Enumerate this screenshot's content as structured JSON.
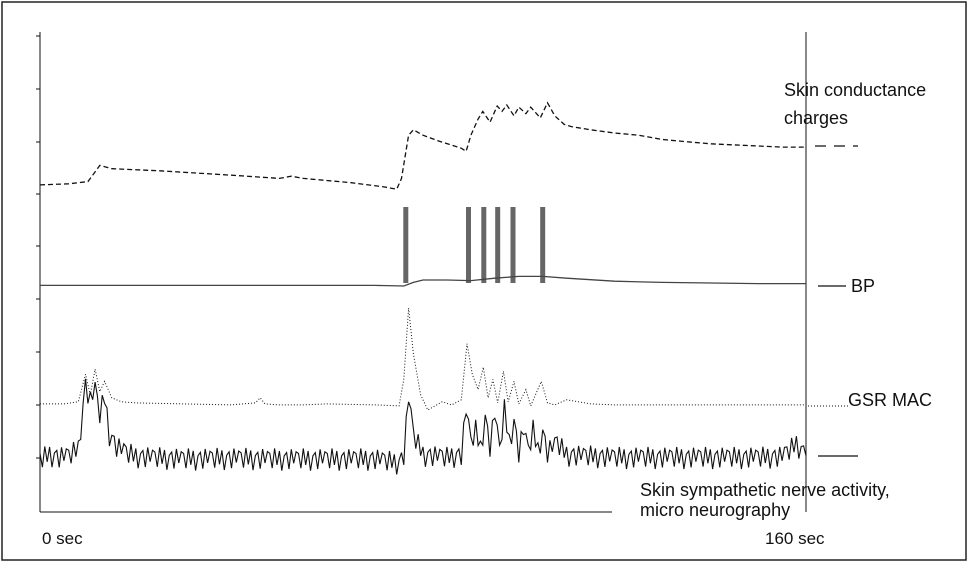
{
  "chart_data": {
    "type": "line",
    "xlabel": "",
    "ylabel": "",
    "xlim": [
      0,
      160
    ],
    "grid": false,
    "x_tick_labels": [
      {
        "x": 0,
        "label": "0 sec"
      },
      {
        "x": 160,
        "label": "160 sec"
      }
    ],
    "bp_pulses_x": [
      76.3,
      89.4,
      92.6,
      95.5,
      98.7,
      104.9
    ],
    "series": [
      {
        "name": "Skin conductance charges",
        "style": "dashed",
        "x": [
          0,
          6,
          10,
          11.5,
          12.5,
          15,
          25,
          40,
          50,
          52.5,
          55,
          65,
          72,
          74.5,
          75.5,
          77,
          78,
          80,
          83,
          88,
          89,
          90,
          91.5,
          92.5,
          94,
          95.5,
          96.5,
          97.5,
          99,
          100,
          101.5,
          102.5,
          104.5,
          106,
          107.5,
          109.5,
          111,
          115,
          120,
          125,
          130,
          135,
          140,
          145,
          150,
          155,
          158,
          160
        ],
        "y": [
          0.14,
          0.15,
          0.17,
          0.26,
          0.32,
          0.29,
          0.27,
          0.23,
          0.2,
          0.22,
          0.2,
          0.16,
          0.12,
          0.1,
          0.2,
          0.6,
          0.65,
          0.6,
          0.55,
          0.48,
          0.45,
          0.6,
          0.75,
          0.82,
          0.72,
          0.87,
          0.82,
          0.88,
          0.78,
          0.86,
          0.8,
          0.86,
          0.76,
          0.9,
          0.78,
          0.7,
          0.68,
          0.65,
          0.62,
          0.6,
          0.56,
          0.54,
          0.52,
          0.51,
          0.5,
          0.49,
          0.49,
          0.49
        ]
      },
      {
        "name": "BP",
        "style": "solid",
        "x": [
          0,
          10,
          20,
          30,
          40,
          50,
          60,
          70,
          76,
          78,
          80,
          85,
          90,
          95,
          100,
          105,
          110,
          120,
          130,
          140,
          150,
          160
        ],
        "y": [
          0.01,
          0.01,
          0.01,
          0.01,
          0.01,
          0.01,
          0.01,
          0.01,
          0.0,
          0.06,
          0.1,
          0.1,
          0.09,
          0.13,
          0.16,
          0.16,
          0.13,
          0.08,
          0.06,
          0.05,
          0.04,
          0.04
        ]
      },
      {
        "name": "GSR MAC",
        "style": "dotted",
        "x": [
          0,
          5,
          8,
          9.5,
          10.5,
          11.5,
          12.5,
          13.5,
          15,
          17,
          20,
          30,
          40,
          45,
          46,
          47,
          50,
          55,
          60,
          70,
          75,
          76,
          77,
          78,
          79.5,
          81,
          84,
          86,
          88,
          89.2,
          90.3,
          91.5,
          92.6,
          93.6,
          94.6,
          95.6,
          96.8,
          97.8,
          99,
          100,
          101.5,
          102.5,
          104.7,
          106,
          107.5,
          110,
          115,
          120,
          130,
          140,
          150,
          160
        ],
        "y": [
          0.06,
          0.06,
          0.08,
          0.35,
          0.15,
          0.4,
          0.18,
          0.28,
          0.12,
          0.08,
          0.07,
          0.06,
          0.05,
          0.07,
          0.12,
          0.06,
          0.05,
          0.05,
          0.06,
          0.05,
          0.04,
          0.3,
          1.0,
          0.55,
          0.15,
          0.0,
          0.08,
          0.05,
          0.1,
          0.65,
          0.35,
          0.2,
          0.42,
          0.12,
          0.3,
          0.07,
          0.38,
          0.08,
          0.28,
          0.06,
          0.2,
          0.04,
          0.28,
          0.07,
          0.05,
          0.1,
          0.06,
          0.05,
          0.05,
          0.05,
          0.05,
          0.05
        ]
      },
      {
        "name": "Skin sympathetic nerve activity, micro neurography",
        "style": "solid",
        "x": [
          0,
          2,
          4,
          6,
          8,
          9.5,
          10.5,
          11.5,
          12.5,
          13.5,
          14.5,
          16,
          18,
          20,
          30,
          40,
          50,
          60,
          70,
          75,
          76,
          77,
          78,
          80,
          85,
          88,
          89,
          90,
          91,
          92,
          93,
          94,
          95,
          96,
          97,
          98,
          99,
          100,
          101,
          102,
          103,
          104,
          105,
          106,
          108,
          110,
          120,
          130,
          140,
          150,
          155,
          158,
          160
        ],
        "y": [
          0.0,
          0.05,
          0.02,
          0.04,
          0.12,
          0.9,
          0.7,
          0.85,
          0.55,
          0.75,
          0.3,
          0.15,
          0.08,
          0.03,
          0.0,
          0.01,
          0.0,
          0.0,
          0.0,
          -0.05,
          0.05,
          0.75,
          0.3,
          0.05,
          0.02,
          0.05,
          0.6,
          0.2,
          0.35,
          0.12,
          0.5,
          0.15,
          0.55,
          0.1,
          0.6,
          0.2,
          0.45,
          0.08,
          0.35,
          0.1,
          0.35,
          0.1,
          0.32,
          0.08,
          0.2,
          0.05,
          0.02,
          0.02,
          0.02,
          0.02,
          0.03,
          0.18,
          0.05
        ]
      }
    ]
  },
  "legend": {
    "skin_conductance_line1": "Skin conductance",
    "skin_conductance_line2": "charges",
    "bp": "BP",
    "gsr": "GSR MAC",
    "snerve_line1": "Skin sympathetic nerve activity,",
    "snerve_line2": "micro neurography"
  }
}
